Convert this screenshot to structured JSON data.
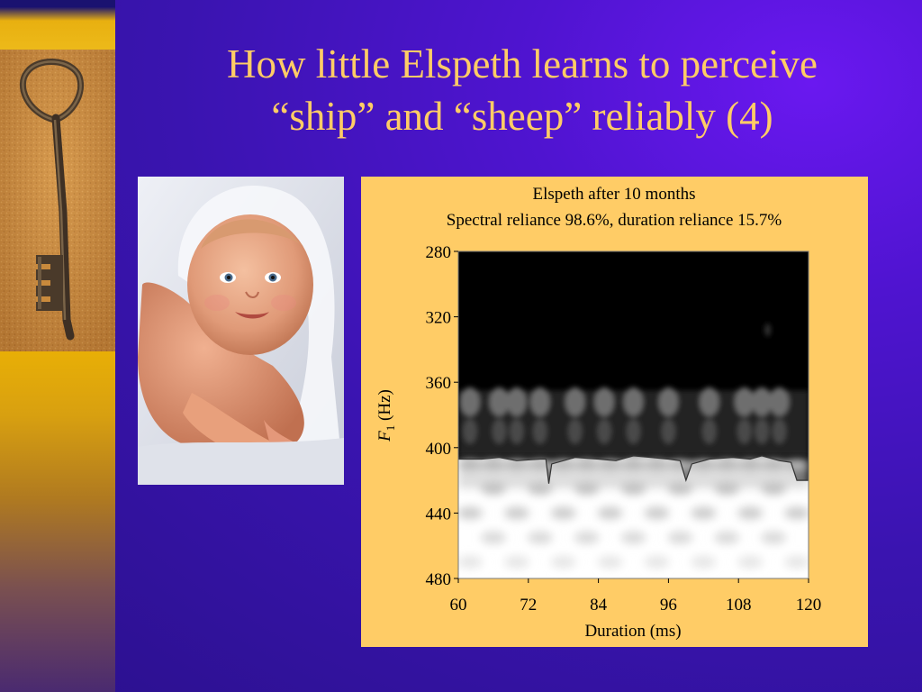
{
  "slide": {
    "title_line1": "How little Elspeth learns to perceive",
    "title_line2": "“ship” and “sheep” reliably (4)",
    "images": {
      "key": "antique-key-icon",
      "baby": "baby-photo"
    },
    "colors": {
      "background": "#4a14c8",
      "title": "#ffcc66",
      "chart_panel": "#ffcc66",
      "sidebar": "#f2b800"
    }
  },
  "chart_data": {
    "type": "heatmap",
    "title": "Elspeth after 10 months",
    "subtitle": "Spectral reliance 98.6%, duration reliance 15.7%",
    "xlabel": "Duration (ms)",
    "ylabel_italic": "F",
    "ylabel_sub": "1",
    "ylabel_rest": " (Hz)",
    "xlim": [
      60,
      120
    ],
    "ylim": [
      480,
      280
    ],
    "xticks": [
      60,
      72,
      84,
      96,
      108,
      120
    ],
    "yticks": [
      280,
      320,
      360,
      400,
      440,
      480
    ],
    "boundary": [
      {
        "x": 60,
        "y": 407
      },
      {
        "x": 64,
        "y": 407
      },
      {
        "x": 67,
        "y": 406
      },
      {
        "x": 70,
        "y": 408
      },
      {
        "x": 74,
        "y": 407
      },
      {
        "x": 75,
        "y": 407
      },
      {
        "x": 75.5,
        "y": 422
      },
      {
        "x": 76,
        "y": 410
      },
      {
        "x": 80,
        "y": 406
      },
      {
        "x": 84,
        "y": 407
      },
      {
        "x": 87,
        "y": 408
      },
      {
        "x": 90,
        "y": 405
      },
      {
        "x": 93,
        "y": 406
      },
      {
        "x": 96,
        "y": 407
      },
      {
        "x": 98,
        "y": 408
      },
      {
        "x": 99,
        "y": 420
      },
      {
        "x": 100,
        "y": 410
      },
      {
        "x": 103,
        "y": 407
      },
      {
        "x": 107,
        "y": 406
      },
      {
        "x": 110,
        "y": 407
      },
      {
        "x": 112,
        "y": 405
      },
      {
        "x": 115,
        "y": 408
      },
      {
        "x": 117,
        "y": 409
      },
      {
        "x": 118,
        "y": 420
      },
      {
        "x": 120,
        "y": 420
      }
    ],
    "upper_gray_columns": [
      62,
      67,
      70,
      74,
      80,
      85,
      90,
      96,
      103,
      109,
      112,
      115
    ],
    "lower_gray_bands": [
      {
        "y": 410,
        "level": 0.35
      },
      {
        "y": 425,
        "level": 0.25
      },
      {
        "y": 440,
        "level": 0.2
      },
      {
        "y": 455,
        "level": 0.15
      },
      {
        "y": 470,
        "level": 0.1
      }
    ],
    "lower_gray_columns": [
      62,
      66,
      70,
      74,
      78,
      82,
      86,
      90,
      94,
      98,
      102,
      106,
      110,
      114,
      118
    ]
  }
}
